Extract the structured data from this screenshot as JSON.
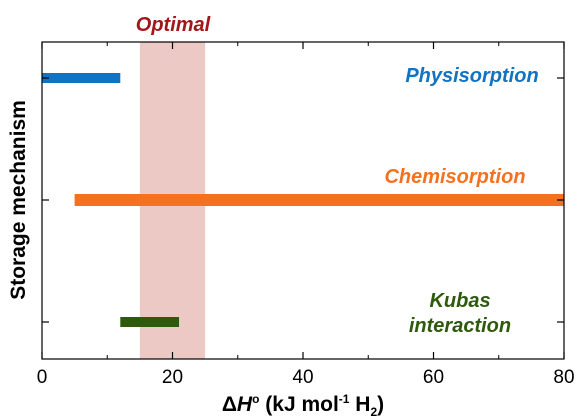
{
  "chart_data": {
    "type": "bar",
    "orientation": "horizontal-range",
    "xlabel": {
      "prefix": "Δ",
      "symbol": "H",
      "degree": "o",
      "unit_open": " (kJ mol",
      "unit_exp": "-1",
      "unit_mid": " H",
      "unit_sub": "2",
      "unit_close": ")"
    },
    "ylabel": "Storage mechanism",
    "xlim": [
      0,
      80
    ],
    "x_ticks": [
      0,
      20,
      40,
      60,
      80
    ],
    "grid": false,
    "highlight": {
      "label": "Optimal",
      "x_range": [
        15,
        25
      ],
      "color": "#edc9c6",
      "label_color": "#a3171b"
    },
    "series": [
      {
        "name": "Physisorption",
        "lines": [
          "Physisorption"
        ],
        "range": [
          0,
          12
        ],
        "color": "#1273c2"
      },
      {
        "name": "Chemisorption",
        "lines": [
          "Chemisorption"
        ],
        "range": [
          5,
          80
        ],
        "color": "#f4711f"
      },
      {
        "name": "Kubas interaction",
        "lines": [
          "Kubas",
          "interaction"
        ],
        "range": [
          12,
          21
        ],
        "color": "#2e5a0e"
      }
    ]
  }
}
